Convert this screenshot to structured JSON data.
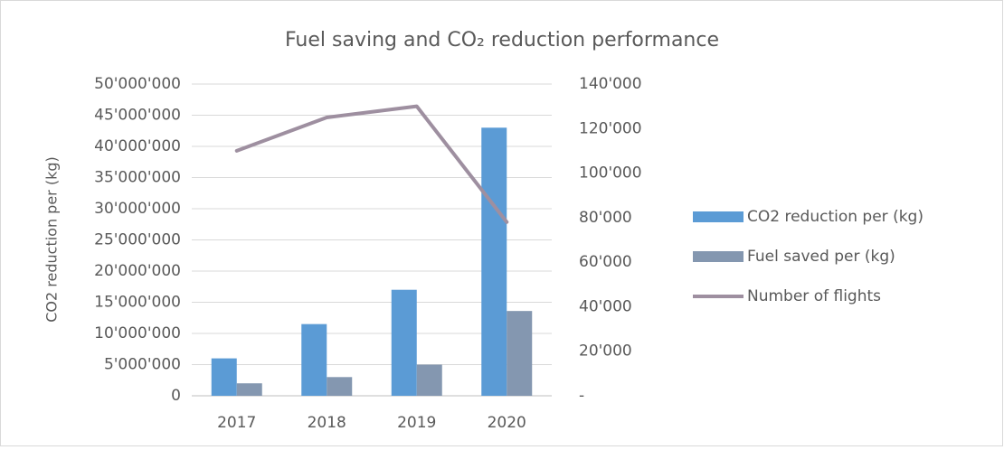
{
  "chart_data": {
    "type": "bar_line",
    "title": "Fuel saving and CO₂ reduction performance",
    "ylabel": "CO2 reduction per (kg)",
    "categories": [
      "2017",
      "2018",
      "2019",
      "2020"
    ],
    "series": [
      {
        "name": "CO2 reduction per (kg)",
        "color": "#5b9bd5",
        "type": "bar",
        "values": [
          6000000,
          11500000,
          17000000,
          43000000
        ]
      },
      {
        "name": "Fuel saved per (kg)",
        "color": "#8497b0",
        "type": "bar",
        "values": [
          2000000,
          3000000,
          5000000,
          13600000
        ]
      },
      {
        "name": "Number of flights",
        "color": "#9e8fa0",
        "type": "line",
        "axis": "y2",
        "values": [
          110000,
          125000,
          130000,
          78000
        ]
      }
    ],
    "ylim": [
      0,
      50000000
    ],
    "yticks": [
      0,
      {
        "value": 5000000,
        "label": "5'000'000"
      },
      {
        "value": 10000000,
        "label": "10'000'000"
      },
      {
        "value": 15000000,
        "label": "15'000'000"
      },
      {
        "value": 20000000,
        "label": "20'000'000"
      },
      {
        "value": 25000000,
        "label": "25'000'000"
      },
      {
        "value": 30000000,
        "label": "30'000'000"
      },
      {
        "value": 35000000,
        "label": "35'000'000"
      },
      {
        "value": 40000000,
        "label": "40'000'000"
      },
      {
        "value": 45000000,
        "label": "45'000'000"
      },
      {
        "value": 50000000,
        "label": "50'000'000"
      }
    ],
    "y2lim": [
      0,
      140000
    ],
    "y2ticks": [
      {
        "value": 0,
        "label": "-"
      },
      {
        "value": 20000,
        "label": "20'000"
      },
      {
        "value": 40000,
        "label": "40'000"
      },
      {
        "value": 60000,
        "label": "60'000"
      },
      {
        "value": 80000,
        "label": "80'000"
      },
      {
        "value": 100000,
        "label": "100'000"
      },
      {
        "value": 120000,
        "label": "120'000"
      },
      {
        "value": 140000,
        "label": "140'000"
      }
    ],
    "grid": true,
    "legend": "right"
  }
}
